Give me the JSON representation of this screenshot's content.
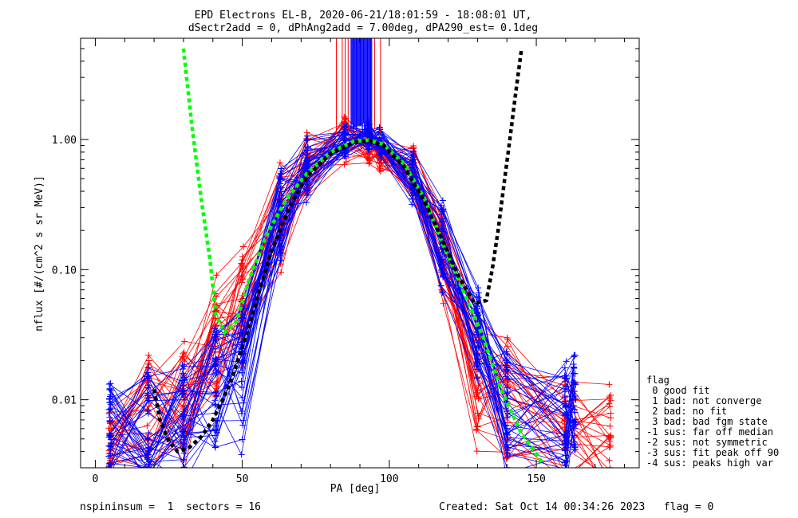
{
  "chart_data": {
    "type": "line",
    "title_line1": "EPD Electrons EL-B, 2020-06-21/18:01:59 - 18:08:01 UT,",
    "title_line2": "dSectr2add = 0, dPhAng2add = 7.00deg, dPA290_est=   0.1deg",
    "xlabel": "PA [deg]",
    "ylabel": "nflux [#/(cm^2 s sr MeV)]",
    "xlim": [
      -5,
      185
    ],
    "ylim": [
      0.003,
      6.0
    ],
    "yscale": "log",
    "x_ticks": [
      0,
      50,
      100,
      150
    ],
    "x_tick_labels": [
      "0",
      "50",
      "100",
      "150"
    ],
    "y_ticks": [
      0.01,
      0.1,
      1.0
    ],
    "y_tick_labels": [
      "0.01",
      "0.10",
      "1.00"
    ],
    "legend": {
      "title": "flag",
      "entries": [
        " 0 good fit",
        " 1 bad: not converge",
        " 2 bad: no fit",
        " 3 bad: bad fgm state",
        "-1 sus: far off median",
        "-2 sus: not symmetric",
        "-3 sus: fit peak off 90",
        "-4 sus: peaks high var"
      ]
    },
    "footer_left": "nspininsum =  1  sectors = 16",
    "footer_right": "Created: Sat Oct 14 00:34:26 2023   flag = 0",
    "colors": {
      "red": "#ff0000",
      "blue": "#0000ff",
      "green": "#00ff00",
      "black": "#000000"
    },
    "series": [
      {
        "name": "red-distributions",
        "color": "red",
        "x": [
          5,
          18,
          30,
          41,
          50,
          63,
          72,
          85,
          93,
          97,
          108,
          118,
          130,
          140,
          160,
          175
        ],
        "count": 30,
        "typical": [
          0.005,
          0.006,
          0.008,
          0.025,
          0.05,
          0.25,
          0.6,
          1.0,
          0.85,
          0.75,
          0.55,
          0.12,
          0.015,
          0.008,
          0.005,
          0.004
        ],
        "spread": [
          0.3,
          0.45,
          0.45,
          0.45,
          0.4,
          0.35,
          0.3,
          0.15,
          0.12,
          0.12,
          0.18,
          0.3,
          0.45,
          0.45,
          0.45,
          0.45
        ]
      },
      {
        "name": "blue-distributions",
        "color": "blue",
        "x": [
          5,
          18,
          30,
          41,
          50,
          63,
          72,
          85,
          93,
          97,
          108,
          118,
          130,
          140,
          160,
          163
        ],
        "count": 38,
        "typical": [
          0.006,
          0.006,
          0.007,
          0.012,
          0.015,
          0.25,
          0.6,
          0.95,
          1.05,
          0.95,
          0.5,
          0.15,
          0.03,
          0.009,
          0.007,
          0.008
        ],
        "spread": [
          0.35,
          0.4,
          0.4,
          0.4,
          0.5,
          0.35,
          0.2,
          0.12,
          0.1,
          0.1,
          0.18,
          0.3,
          0.35,
          0.4,
          0.4,
          0.4
        ]
      },
      {
        "name": "green-fit",
        "color": "green",
        "x": [
          30,
          33,
          36,
          39,
          41,
          44,
          48,
          52,
          58,
          65,
          72,
          80,
          88,
          93,
          98,
          105,
          112,
          118,
          125,
          132,
          138,
          145,
          152
        ],
        "y": [
          5.0,
          1.2,
          0.35,
          0.12,
          0.045,
          0.033,
          0.04,
          0.08,
          0.18,
          0.35,
          0.55,
          0.8,
          0.97,
          0.99,
          0.92,
          0.65,
          0.35,
          0.16,
          0.07,
          0.03,
          0.012,
          0.0055,
          0.0033
        ]
      },
      {
        "name": "black-fit",
        "color": "black",
        "x": [
          20,
          22,
          25,
          28,
          32,
          36,
          40,
          45,
          50,
          55,
          60,
          66,
          72,
          80,
          88,
          93,
          98,
          105,
          112,
          118,
          124,
          129,
          133,
          135,
          137,
          139,
          141,
          143,
          145
        ],
        "y": [
          0.012,
          0.007,
          0.0048,
          0.004,
          0.0043,
          0.0052,
          0.007,
          0.012,
          0.025,
          0.06,
          0.14,
          0.3,
          0.52,
          0.78,
          0.95,
          0.98,
          0.9,
          0.62,
          0.33,
          0.17,
          0.085,
          0.055,
          0.058,
          0.1,
          0.2,
          0.45,
          1.0,
          2.3,
          5.0
        ]
      }
    ]
  }
}
